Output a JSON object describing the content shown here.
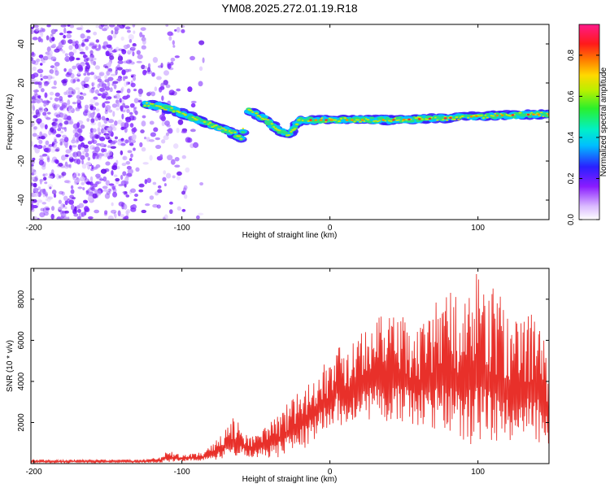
{
  "title": "YM08.2025.272.01.19.R18",
  "colors": {
    "scatter_edge": "#7a1fff",
    "snr_line": "#e8302a",
    "axis": "#000000"
  },
  "chart_data": [
    {
      "type": "heatmap",
      "title": "YM08.2025.272.01.19.R18",
      "xlabel": "Height of straight line (km)",
      "ylabel": "Frequency (Hz)",
      "xlim": [
        -202,
        148
      ],
      "ylim": [
        -50,
        50
      ],
      "xticks": [
        -200,
        -100,
        0,
        100
      ],
      "yticks": [
        -40,
        -20,
        0,
        20,
        40
      ],
      "colorbar": {
        "label": "Normalized spectral amplitude",
        "range": [
          0,
          0.95
        ],
        "ticks": [
          0.0,
          0.2,
          0.4,
          0.6,
          0.8
        ],
        "colormap": "rainbow (white-violet-blue-cyan-green-yellow-orange-red-magenta)"
      },
      "trace_description": "Noise scatter for x < -85 km; coherent track from ~+9 Hz at -125 km descending to ~-8 Hz at -60 km, secondary branch near -55 to -30 km, then ~+1 Hz rising to ~+4 Hz from -20 to 148 km",
      "trace_points": [
        {
          "x": -125,
          "y": 9
        },
        {
          "x": -115,
          "y": 8
        },
        {
          "x": -105,
          "y": 6
        },
        {
          "x": -95,
          "y": 3
        },
        {
          "x": -85,
          "y": 0
        },
        {
          "x": -75,
          "y": -3
        },
        {
          "x": -65,
          "y": -6
        },
        {
          "x": -60,
          "y": -8
        },
        {
          "x": -55,
          "y": 6
        },
        {
          "x": -45,
          "y": 2
        },
        {
          "x": -35,
          "y": -4
        },
        {
          "x": -28,
          "y": -7
        },
        {
          "x": -20,
          "y": 1
        },
        {
          "x": 0,
          "y": 1
        },
        {
          "x": 20,
          "y": 1
        },
        {
          "x": 40,
          "y": 1
        },
        {
          "x": 60,
          "y": 1.5
        },
        {
          "x": 80,
          "y": 2
        },
        {
          "x": 100,
          "y": 3
        },
        {
          "x": 120,
          "y": 3.5
        },
        {
          "x": 148,
          "y": 4
        }
      ]
    },
    {
      "type": "line",
      "xlabel": "Height of straight line (km)",
      "ylabel": "SNR (10 * v/v)",
      "xlim": [
        -202,
        148
      ],
      "ylim": [
        0,
        9500
      ],
      "xticks": [
        -200,
        -100,
        0,
        100
      ],
      "yticks": [
        2000,
        4000,
        6000,
        8000
      ],
      "series": [
        {
          "name": "SNR",
          "envelope_x": [
            -202,
            -130,
            -115,
            -110,
            -100,
            -85,
            -75,
            -65,
            -60,
            -55,
            -45,
            -35,
            -25,
            -15,
            -5,
            0,
            5,
            10,
            20,
            40,
            60,
            80,
            90,
            100,
            110,
            120,
            130,
            140,
            148
          ],
          "envelope_low": [
            40,
            40,
            40,
            60,
            100,
            150,
            200,
            300,
            350,
            300,
            250,
            300,
            500,
            800,
            1500,
            1800,
            1600,
            2000,
            2200,
            2000,
            1800,
            1500,
            1000,
            800,
            900,
            1000,
            1200,
            1100,
            500
          ],
          "envelope_high": [
            200,
            200,
            300,
            700,
            400,
            600,
            1300,
            2300,
            1800,
            1400,
            1800,
            2400,
            3300,
            4300,
            4800,
            5000,
            7100,
            5300,
            6300,
            7600,
            6800,
            8800,
            8000,
            9400,
            8700,
            7700,
            7200,
            7500,
            5200
          ]
        }
      ]
    }
  ]
}
